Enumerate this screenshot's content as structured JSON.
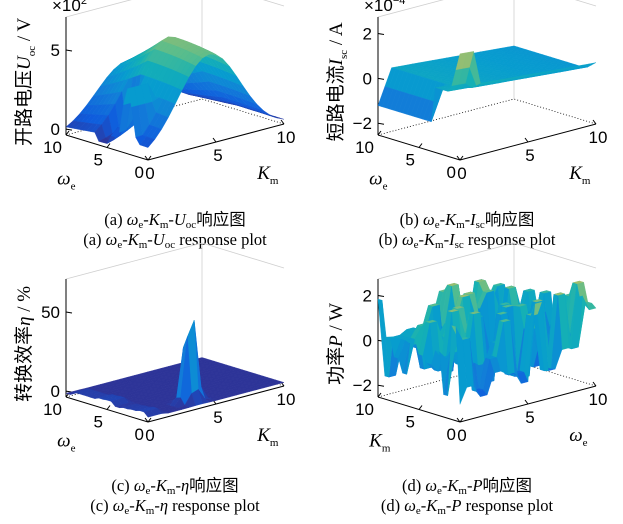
{
  "chart_data": [
    {
      "type": "surface",
      "zlabel_text": "开路电压",
      "zlabel_var": "U",
      "zlabel_sub": "oc",
      "zlabel_unit": " / V",
      "multiplier": "×10",
      "multiplier_exp": "2",
      "zticks": [
        "0",
        "5"
      ],
      "axis1_label": "ω",
      "axis1_sub": "e",
      "axis1_ticks": [
        "10",
        "5",
        "0"
      ],
      "axis2_label": "K",
      "axis2_sub": "m",
      "axis2_ticks": [
        "0",
        "5",
        "10"
      ],
      "caption_cn": {
        "prefix": "(a) ",
        "w": "ω",
        "ws": "e",
        "k": "K",
        "ks": "m",
        "v": "U",
        "vs": "oc",
        "suffix": "响应图"
      },
      "caption_en": {
        "prefix": "(a) ",
        "w": "ω",
        "ws": "e",
        "k": "K",
        "ks": "m",
        "v": "U",
        "vs": "oc",
        "suffix": " response plot"
      }
    },
    {
      "type": "surface",
      "zlabel_text": "短路电流",
      "zlabel_var": "I",
      "zlabel_sub": "sc",
      "zlabel_unit": " / A",
      "multiplier": "×10",
      "multiplier_exp": "−4",
      "zticks": [
        "−2",
        "0",
        "2"
      ],
      "axis1_label": "ω",
      "axis1_sub": "e",
      "axis1_ticks": [
        "10",
        "5",
        "0"
      ],
      "axis2_label": "K",
      "axis2_sub": "m",
      "axis2_ticks": [
        "0",
        "5",
        "10"
      ],
      "caption_cn": {
        "prefix": "(b) ",
        "w": "ω",
        "ws": "e",
        "k": "K",
        "ks": "m",
        "v": "I",
        "vs": "sc",
        "suffix": "响应图"
      },
      "caption_en": {
        "prefix": "(b) ",
        "w": "ω",
        "ws": "e",
        "k": "K",
        "ks": "m",
        "v": "I",
        "vs": "sc",
        "suffix": " response plot"
      }
    },
    {
      "type": "surface",
      "zlabel_text": "转换效率",
      "zlabel_var": "η",
      "zlabel_sub": "",
      "zlabel_unit": " / %",
      "multiplier": "",
      "multiplier_exp": "",
      "zticks": [
        "0",
        "50"
      ],
      "axis1_label": "ω",
      "axis1_sub": "e",
      "axis1_ticks": [
        "10",
        "5",
        "0"
      ],
      "axis2_label": "K",
      "axis2_sub": "m",
      "axis2_ticks": [
        "0",
        "5",
        "10"
      ],
      "caption_cn": {
        "prefix": "(c) ",
        "w": "ω",
        "ws": "e",
        "k": "K",
        "ks": "m",
        "v": "η",
        "vs": "",
        "suffix": "响应图"
      },
      "caption_en": {
        "prefix": "(c) ",
        "w": "ω",
        "ws": "e",
        "k": "K",
        "ks": "m",
        "v": "η",
        "vs": "",
        "suffix": " response plot"
      }
    },
    {
      "type": "surface",
      "zlabel_text": "功率",
      "zlabel_var": "P",
      "zlabel_sub": "",
      "zlabel_unit": " / W",
      "multiplier": "",
      "multiplier_exp": "",
      "zticks": [
        "−2",
        "0",
        "2"
      ],
      "axis1_label": "K",
      "axis1_sub": "m",
      "axis1_ticks": [
        "10",
        "5",
        "0"
      ],
      "axis2_label": "ω",
      "axis2_sub": "e",
      "axis2_ticks": [
        "0",
        "5",
        "10"
      ],
      "caption_cn": {
        "prefix": "(d) ",
        "w": "ω",
        "ws": "e",
        "k": "K",
        "ks": "m",
        "v": "P",
        "vs": "",
        "suffix": "响应图"
      },
      "caption_en": {
        "prefix": "(d) ",
        "w": "ω",
        "ws": "e",
        "k": "K",
        "ks": "m",
        "v": "P",
        "vs": "",
        "suffix": " response plot"
      }
    }
  ]
}
